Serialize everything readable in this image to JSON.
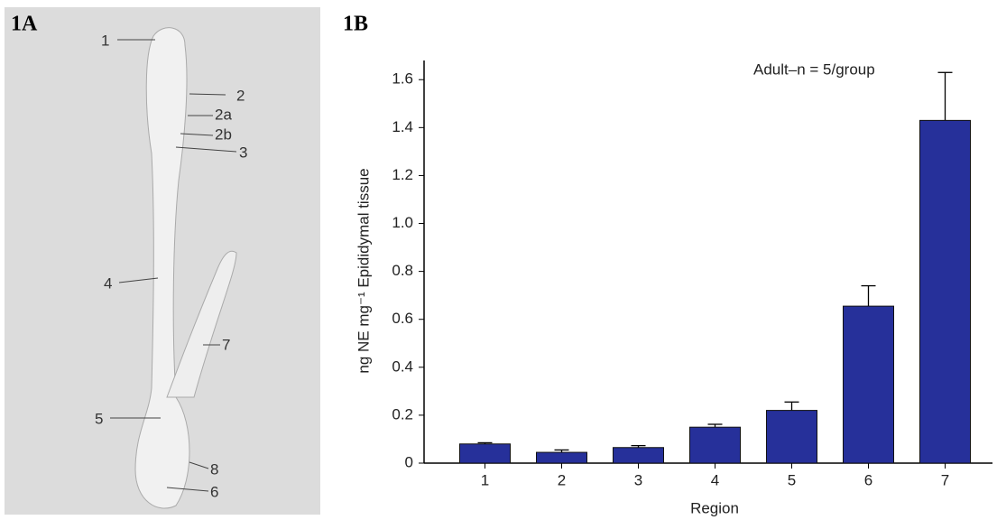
{
  "panel_a": {
    "label": "1A",
    "annotations": [
      "1",
      "2",
      "2a",
      "2b",
      "3",
      "4",
      "5",
      "6",
      "7",
      "8"
    ]
  },
  "chart_data": {
    "type": "bar",
    "panel_label": "1B",
    "annotation": "Adult–n = 5/group",
    "x_label": "Region",
    "y_label": "ng NE mg⁻¹ Epididymal tissue",
    "categories": [
      "1",
      "2",
      "3",
      "4",
      "5",
      "6",
      "7"
    ],
    "values": [
      0.08,
      0.045,
      0.065,
      0.15,
      0.22,
      0.655,
      1.43
    ],
    "errors": [
      0.005,
      0.01,
      0.008,
      0.012,
      0.035,
      0.085,
      0.2
    ],
    "color": "#26309a",
    "ylim": [
      0,
      1.68
    ],
    "yticks": [
      0,
      0.2,
      0.4,
      0.6,
      0.8,
      {
        "value": 1,
        "label": "1.0"
      },
      1.2,
      1.4,
      1.6
    ]
  }
}
